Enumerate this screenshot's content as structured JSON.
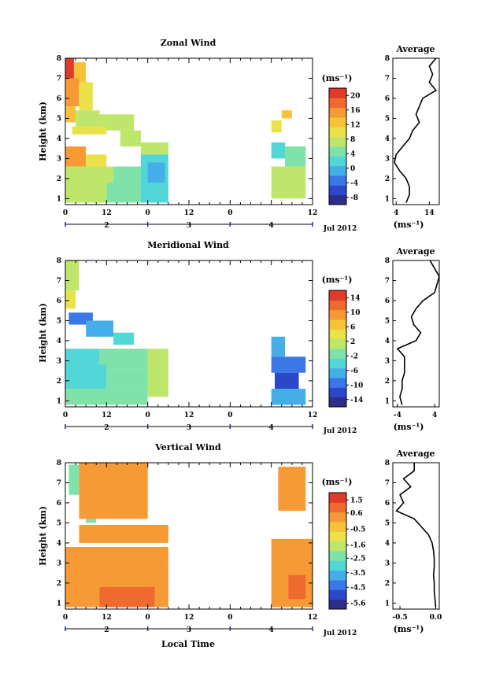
{
  "chart_data": [
    {
      "type": "heatmap",
      "title": "Zonal Wind",
      "ylabel": "Height (km)",
      "ylim": [
        0.7,
        8
      ],
      "yticks": [
        1,
        2,
        3,
        4,
        5,
        6,
        7,
        8
      ],
      "local_hour_ticks": [
        "0",
        "12",
        "0",
        "12",
        "0",
        "12"
      ],
      "date_ticks": [
        "2",
        "3",
        "4"
      ],
      "date_label": "Jul 2012",
      "colorbar": {
        "unit": "(ms⁻¹)",
        "ticks": [
          20,
          16,
          12,
          8,
          4,
          0,
          -4,
          -8
        ],
        "range": [
          -10,
          22
        ]
      },
      "blocks": [
        {
          "t": [
            0,
            2.5
          ],
          "h": [
            7.0,
            8.0
          ],
          "v": 20
        },
        {
          "t": [
            2.5,
            6
          ],
          "h": [
            6.8,
            7.8
          ],
          "v": 12
        },
        {
          "t": [
            0,
            4
          ],
          "h": [
            5.6,
            7.0
          ],
          "v": 14
        },
        {
          "t": [
            4,
            8
          ],
          "h": [
            5.4,
            6.8
          ],
          "v": 10
        },
        {
          "t": [
            0,
            3
          ],
          "h": [
            4.8,
            5.6
          ],
          "v": 12
        },
        {
          "t": [
            3,
            10
          ],
          "h": [
            4.6,
            5.4
          ],
          "v": 8
        },
        {
          "t": [
            10,
            20
          ],
          "h": [
            4.4,
            5.2
          ],
          "v": 7
        },
        {
          "t": [
            2,
            12
          ],
          "h": [
            4.2,
            4.6
          ],
          "v": 10
        },
        {
          "t": [
            16,
            22
          ],
          "h": [
            3.6,
            4.4
          ],
          "v": 7
        },
        {
          "t": [
            22,
            30
          ],
          "h": [
            3.2,
            3.8
          ],
          "v": 6
        },
        {
          "t": [
            0,
            6
          ],
          "h": [
            2.6,
            3.6
          ],
          "v": 15
        },
        {
          "t": [
            6,
            12
          ],
          "h": [
            2.5,
            3.2
          ],
          "v": 10
        },
        {
          "t": [
            0,
            14
          ],
          "h": [
            1.8,
            2.6
          ],
          "v": 7
        },
        {
          "t": [
            14,
            22
          ],
          "h": [
            1.8,
            2.6
          ],
          "v": 5
        },
        {
          "t": [
            22,
            30
          ],
          "h": [
            1.6,
            3.2
          ],
          "v": 2
        },
        {
          "t": [
            24,
            29
          ],
          "h": [
            1.8,
            2.8
          ],
          "v": -2
        },
        {
          "t": [
            0,
            12
          ],
          "h": [
            0.8,
            1.8
          ],
          "v": 7
        },
        {
          "t": [
            12,
            22
          ],
          "h": [
            0.8,
            1.8
          ],
          "v": 5
        },
        {
          "t": [
            22,
            30
          ],
          "h": [
            0.8,
            1.6
          ],
          "v": 3
        },
        {
          "t": [
            60,
            64
          ],
          "h": [
            3.0,
            3.8
          ],
          "v": 2
        },
        {
          "t": [
            64,
            70
          ],
          "h": [
            2.6,
            3.6
          ],
          "v": 4
        },
        {
          "t": [
            60,
            70
          ],
          "h": [
            1.0,
            2.6
          ],
          "v": 8
        },
        {
          "t": [
            60,
            63
          ],
          "h": [
            4.3,
            4.9
          ],
          "v": 9
        },
        {
          "t": [
            63,
            66
          ],
          "h": [
            5.0,
            5.4
          ],
          "v": 12
        }
      ],
      "profile": {
        "title": "Average",
        "xlim": [
          3,
          17
        ],
        "xticks": [
          4,
          14
        ],
        "xunit": "(ms⁻¹)",
        "h": [
          0.8,
          1.2,
          1.6,
          2.0,
          2.4,
          2.8,
          3.2,
          3.6,
          4.0,
          4.4,
          4.8,
          5.2,
          5.6,
          6.0,
          6.4,
          6.8,
          7.2,
          7.6,
          8.0
        ],
        "v": [
          7,
          8,
          8,
          7,
          5,
          3.5,
          4,
          6,
          8,
          9,
          11,
          10,
          11,
          12,
          16,
          14,
          15,
          14,
          16
        ]
      }
    },
    {
      "type": "heatmap",
      "title": "Meridional Wind",
      "ylabel": "Height (km)",
      "ylim": [
        0.7,
        8
      ],
      "yticks": [
        1,
        2,
        3,
        4,
        5,
        6,
        7,
        8
      ],
      "local_hour_ticks": [
        "0",
        "12",
        "0",
        "12",
        "0",
        "12"
      ],
      "date_ticks": [
        "2",
        "3",
        "4"
      ],
      "date_label": "Jul 2012",
      "colorbar": {
        "unit": "(ms⁻¹)",
        "ticks": [
          14,
          10,
          6,
          2,
          -2,
          -6,
          -10,
          -14
        ],
        "range": [
          -16,
          16
        ]
      },
      "blocks": [
        {
          "t": [
            0,
            4
          ],
          "h": [
            6.5,
            8.0
          ],
          "v": 1
        },
        {
          "t": [
            0,
            3
          ],
          "h": [
            5.6,
            6.5
          ],
          "v": 3
        },
        {
          "t": [
            1,
            8
          ],
          "h": [
            4.8,
            5.4
          ],
          "v": -10
        },
        {
          "t": [
            6,
            14
          ],
          "h": [
            4.2,
            5.0
          ],
          "v": -8
        },
        {
          "t": [
            14,
            20
          ],
          "h": [
            3.8,
            4.4
          ],
          "v": -4
        },
        {
          "t": [
            0,
            10
          ],
          "h": [
            2.8,
            3.6
          ],
          "v": -4
        },
        {
          "t": [
            10,
            24
          ],
          "h": [
            2.6,
            3.6
          ],
          "v": -2
        },
        {
          "t": [
            24,
            30
          ],
          "h": [
            1.2,
            3.6
          ],
          "v": 1
        },
        {
          "t": [
            0,
            12
          ],
          "h": [
            1.6,
            2.8
          ],
          "v": -3
        },
        {
          "t": [
            12,
            24
          ],
          "h": [
            1.6,
            2.6
          ],
          "v": -1
        },
        {
          "t": [
            0,
            24
          ],
          "h": [
            0.8,
            1.6
          ],
          "v": -2
        },
        {
          "t": [
            60,
            64
          ],
          "h": [
            3.2,
            4.2
          ],
          "v": -8
        },
        {
          "t": [
            60,
            70
          ],
          "h": [
            2.4,
            3.2
          ],
          "v": -9
        },
        {
          "t": [
            61,
            68
          ],
          "h": [
            1.6,
            2.4
          ],
          "v": -12
        },
        {
          "t": [
            60,
            70
          ],
          "h": [
            0.8,
            1.6
          ],
          "v": -6
        }
      ],
      "profile": {
        "title": "Average",
        "xlim": [
          -5,
          5
        ],
        "xticks": [
          -4,
          4
        ],
        "xunit": "(ms⁻¹)",
        "h": [
          0.8,
          1.2,
          1.6,
          2.0,
          2.4,
          2.8,
          3.2,
          3.6,
          4.0,
          4.4,
          4.8,
          5.2,
          5.6,
          6.0,
          6.4,
          6.8,
          7.2,
          7.6,
          8.0
        ],
        "v": [
          -3,
          -3.5,
          -3,
          -3,
          -2.5,
          -2.5,
          -2.5,
          -4,
          0,
          1,
          -0.5,
          -1,
          0,
          1.5,
          4,
          4.5,
          5,
          4,
          3
        ]
      }
    },
    {
      "type": "heatmap",
      "title": "Vertical Wind",
      "ylabel": "Height (km)",
      "xlabel": "Local Time",
      "ylim": [
        0.7,
        8
      ],
      "yticks": [
        1,
        2,
        3,
        4,
        5,
        6,
        7,
        8
      ],
      "local_hour_ticks": [
        "0",
        "12",
        "0",
        "12",
        "0",
        "12"
      ],
      "date_ticks": [
        "2",
        "3",
        "4"
      ],
      "date_label": "Jul 2012",
      "colorbar": {
        "unit": "(ms⁻¹)",
        "ticks": [
          "1.5",
          "0.6",
          "-0.5",
          "-1.6",
          "-2.5",
          "-3.5",
          "-4.5",
          "-5.6"
        ],
        "range": [
          -6,
          2
        ]
      },
      "blocks": [
        {
          "t": [
            1,
            4
          ],
          "h": [
            6.4,
            7.9
          ],
          "v": -2.2
        },
        {
          "t": [
            6,
            9
          ],
          "h": [
            5.0,
            6.4
          ],
          "v": -2.5
        },
        {
          "t": [
            4,
            24
          ],
          "h": [
            5.2,
            8.0
          ],
          "v": 0.2
        },
        {
          "t": [
            4,
            30
          ],
          "h": [
            4.0,
            4.9
          ],
          "v": 0.1
        },
        {
          "t": [
            0,
            30
          ],
          "h": [
            3.0,
            3.8
          ],
          "v": 0.3
        },
        {
          "t": [
            0,
            30
          ],
          "h": [
            0.8,
            3.0
          ],
          "v": 0.6
        },
        {
          "t": [
            10,
            26
          ],
          "h": [
            0.8,
            1.8
          ],
          "v": 0.9
        },
        {
          "t": [
            60,
            72
          ],
          "h": [
            3.0,
            4.2
          ],
          "v": 0.3
        },
        {
          "t": [
            60,
            72
          ],
          "h": [
            0.8,
            3.0
          ],
          "v": 0.6
        },
        {
          "t": [
            65,
            70
          ],
          "h": [
            1.2,
            2.4
          ],
          "v": 1.3
        },
        {
          "t": [
            62,
            70
          ],
          "h": [
            5.6,
            7.8
          ],
          "v": 0.2
        }
      ],
      "profile": {
        "title": "Average",
        "xlim": [
          -0.6,
          0.05
        ],
        "xticks": [
          "-0.5",
          "0.0"
        ],
        "xunit": "(ms⁻¹)",
        "h": [
          0.8,
          1.2,
          1.6,
          2.0,
          2.4,
          2.8,
          3.2,
          3.6,
          4.0,
          4.4,
          4.8,
          5.2,
          5.6,
          6.0,
          6.4,
          6.8,
          7.2,
          7.6,
          8.0
        ],
        "v": [
          0.0,
          -0.01,
          -0.02,
          -0.02,
          -0.03,
          -0.02,
          -0.02,
          -0.03,
          -0.05,
          -0.1,
          -0.2,
          -0.3,
          -0.55,
          -0.45,
          -0.5,
          -0.35,
          -0.45,
          -0.3,
          -0.3
        ]
      }
    }
  ]
}
